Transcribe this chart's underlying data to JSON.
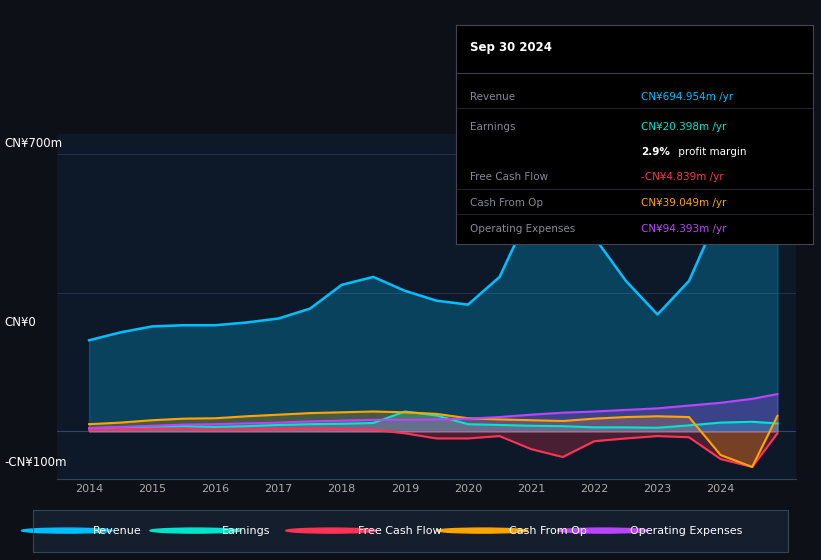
{
  "bg_color": "#0d1117",
  "plot_bg_color": "#0d1928",
  "ylabel_top": "CN¥700m",
  "ylabel_zero": "CN¥0",
  "ylabel_neg": "-CN¥100m",
  "years": [
    2014.0,
    2014.5,
    2015.0,
    2015.5,
    2016.0,
    2016.5,
    2017.0,
    2017.5,
    2018.0,
    2018.5,
    2019.0,
    2019.5,
    2020.0,
    2020.5,
    2021.0,
    2021.5,
    2022.0,
    2022.5,
    2023.0,
    2023.5,
    2024.0,
    2024.5,
    2024.9
  ],
  "revenue": [
    230,
    250,
    265,
    268,
    268,
    275,
    285,
    310,
    370,
    390,
    355,
    330,
    320,
    390,
    560,
    600,
    490,
    380,
    295,
    380,
    560,
    650,
    695
  ],
  "earnings": [
    8,
    10,
    12,
    13,
    11,
    13,
    16,
    18,
    19,
    21,
    50,
    40,
    18,
    16,
    14,
    13,
    10,
    10,
    9,
    15,
    22,
    24,
    20
  ],
  "free_cash_flow": [
    4,
    5,
    6,
    6,
    4,
    5,
    6,
    7,
    5,
    4,
    -5,
    -18,
    -18,
    -12,
    -45,
    -65,
    -25,
    -18,
    -12,
    -15,
    -70,
    -90,
    -5
  ],
  "cash_from_op": [
    18,
    22,
    28,
    32,
    33,
    38,
    42,
    46,
    48,
    50,
    48,
    44,
    33,
    30,
    28,
    26,
    32,
    36,
    38,
    36,
    -60,
    -90,
    39
  ],
  "operating_expenses": [
    8,
    11,
    14,
    17,
    18,
    20,
    22,
    25,
    27,
    29,
    29,
    30,
    32,
    36,
    42,
    47,
    50,
    54,
    58,
    65,
    72,
    82,
    94
  ],
  "revenue_color": "#00bfff",
  "earnings_color": "#00e5cc",
  "fcf_color": "#ff3355",
  "cashop_color": "#ffa500",
  "opex_color": "#bb44ff",
  "legend_labels": [
    "Revenue",
    "Earnings",
    "Free Cash Flow",
    "Cash From Op",
    "Operating Expenses"
  ],
  "tooltip_title": "Sep 30 2024",
  "tooltip_revenue": "CN¥694.954m /yr",
  "tooltip_earnings": "CN¥20.398m /yr",
  "tooltip_margin": "2.9%",
  "tooltip_margin2": " profit margin",
  "tooltip_fcf": "-CN¥4.839m /yr",
  "tooltip_cashop": "CN¥39.049m /yr",
  "tooltip_opex": "CN¥94.393m /yr"
}
